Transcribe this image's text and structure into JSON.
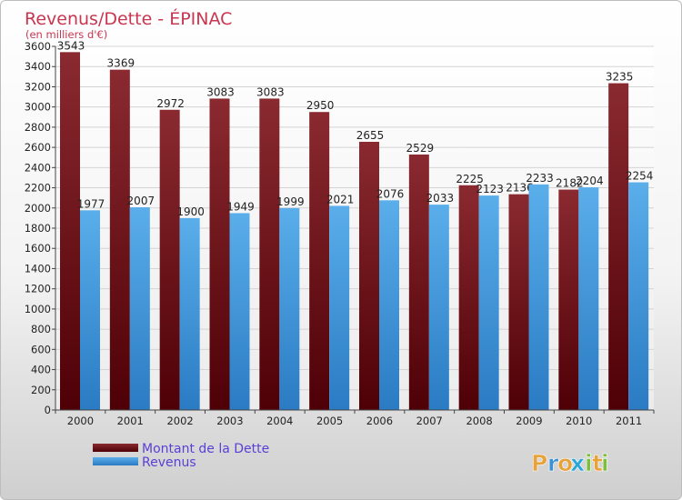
{
  "chart_data": {
    "type": "bar",
    "title": "Revenus/Dette - ÉPINAC",
    "subtitle": "(en milliers d'€)",
    "categories": [
      "2000",
      "2001",
      "2002",
      "2003",
      "2004",
      "2005",
      "2006",
      "2007",
      "2008",
      "2009",
      "2010",
      "2011"
    ],
    "series": [
      {
        "name": "Montant de la Dette",
        "color": "#6b0f14",
        "values": [
          3543,
          3369,
          2972,
          3083,
          3083,
          2950,
          2655,
          2529,
          2225,
          2136,
          2182,
          3235
        ]
      },
      {
        "name": "Revenus",
        "color": "#3d93d8",
        "values": [
          1977,
          2007,
          1900,
          1949,
          1999,
          2021,
          2076,
          2033,
          2123,
          2233,
          2204,
          2254
        ]
      }
    ],
    "ylim": [
      0,
      3600
    ],
    "ytick_step": 200,
    "grid": true,
    "legend_position": "bottom-left"
  },
  "brand": {
    "letters": [
      "P",
      "r",
      "o",
      "x",
      "i",
      "t",
      "i"
    ],
    "colors": [
      "#e8a23a",
      "#3d8fd6",
      "#e8a23a",
      "#2aa7d8",
      "#7cbf3a",
      "#e8a23a",
      "#7cbf3a"
    ]
  },
  "colors": {
    "title": "#c8364f",
    "legend_text": "#5a3fd6",
    "axis_text": "#222222"
  }
}
